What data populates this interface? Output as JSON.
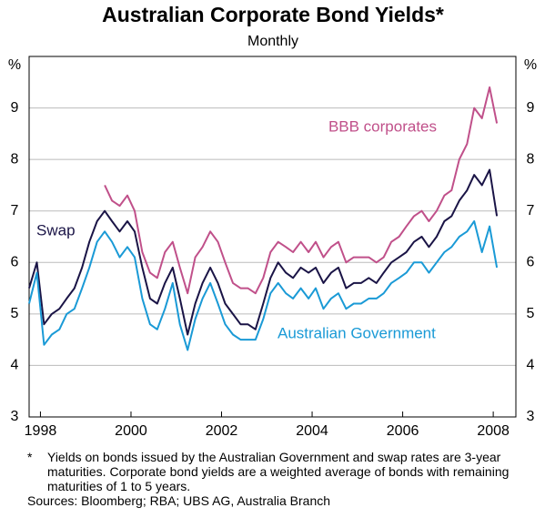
{
  "chart_data": {
    "type": "line",
    "title": "Australian Corporate Bond Yields*",
    "subtitle": "Monthly",
    "y_unit": "%",
    "x": [
      1997.75,
      1997.92,
      1998.08,
      1998.25,
      1998.42,
      1998.58,
      1998.75,
      1998.92,
      1999.08,
      1999.25,
      1999.42,
      1999.58,
      1999.75,
      1999.92,
      2000.08,
      2000.25,
      2000.42,
      2000.58,
      2000.75,
      2000.92,
      2001.08,
      2001.25,
      2001.42,
      2001.58,
      2001.75,
      2001.92,
      2002.08,
      2002.25,
      2002.42,
      2002.58,
      2002.75,
      2002.92,
      2003.08,
      2003.25,
      2003.42,
      2003.58,
      2003.75,
      2003.92,
      2004.08,
      2004.25,
      2004.42,
      2004.58,
      2004.75,
      2004.92,
      2005.08,
      2005.25,
      2005.42,
      2005.58,
      2005.75,
      2005.92,
      2006.08,
      2006.25,
      2006.42,
      2006.58,
      2006.75,
      2006.92,
      2007.08,
      2007.25,
      2007.42,
      2007.58,
      2007.75,
      2007.92,
      2008.08
    ],
    "series": [
      {
        "name": "BBB corporates",
        "color": "#c0508a",
        "values": [
          null,
          null,
          null,
          null,
          null,
          null,
          null,
          null,
          null,
          null,
          7.5,
          7.2,
          7.1,
          7.3,
          7.0,
          6.2,
          5.8,
          5.7,
          6.2,
          6.4,
          5.9,
          5.4,
          6.1,
          6.3,
          6.6,
          6.4,
          6.0,
          5.6,
          5.5,
          5.5,
          5.4,
          5.7,
          6.2,
          6.4,
          6.3,
          6.2,
          6.4,
          6.2,
          6.4,
          6.1,
          6.3,
          6.4,
          6.0,
          6.1,
          6.1,
          6.1,
          6.0,
          6.1,
          6.4,
          6.5,
          6.7,
          6.9,
          7.0,
          6.8,
          7.0,
          7.3,
          7.4,
          8.0,
          8.3,
          9.0,
          8.8,
          9.4,
          8.7
        ]
      },
      {
        "name": "Swap",
        "color": "#1a1446",
        "values": [
          5.5,
          6.0,
          4.8,
          5.0,
          5.1,
          5.3,
          5.5,
          5.9,
          6.4,
          6.8,
          7.0,
          6.8,
          6.6,
          6.8,
          6.6,
          5.9,
          5.3,
          5.2,
          5.6,
          5.9,
          5.3,
          4.6,
          5.2,
          5.6,
          5.9,
          5.6,
          5.2,
          5.0,
          4.8,
          4.8,
          4.7,
          5.2,
          5.7,
          6.0,
          5.8,
          5.7,
          5.9,
          5.8,
          5.9,
          5.6,
          5.8,
          5.9,
          5.5,
          5.6,
          5.6,
          5.7,
          5.6,
          5.8,
          6.0,
          6.1,
          6.2,
          6.4,
          6.5,
          6.3,
          6.5,
          6.8,
          6.9,
          7.2,
          7.4,
          7.7,
          7.5,
          7.8,
          6.9
        ]
      },
      {
        "name": "Australian Government",
        "color": "#1a9ad6",
        "values": [
          5.2,
          5.8,
          4.4,
          4.6,
          4.7,
          5.0,
          5.1,
          5.5,
          5.9,
          6.4,
          6.6,
          6.4,
          6.1,
          6.3,
          6.1,
          5.3,
          4.8,
          4.7,
          5.1,
          5.6,
          4.8,
          4.3,
          4.9,
          5.3,
          5.6,
          5.2,
          4.8,
          4.6,
          4.5,
          4.5,
          4.5,
          4.9,
          5.4,
          5.6,
          5.4,
          5.3,
          5.5,
          5.3,
          5.5,
          5.1,
          5.3,
          5.4,
          5.1,
          5.2,
          5.2,
          5.3,
          5.3,
          5.4,
          5.6,
          5.7,
          5.8,
          6.0,
          6.0,
          5.8,
          6.0,
          6.2,
          6.3,
          6.5,
          6.6,
          6.8,
          6.2,
          6.7,
          5.9
        ]
      }
    ],
    "xlim": [
      1997.75,
      2008.5
    ],
    "xticks": [
      1998,
      2000,
      2002,
      2004,
      2006,
      2008
    ],
    "ylim": [
      3,
      10
    ],
    "yticks": [
      3,
      4,
      5,
      6,
      7,
      8,
      9
    ],
    "grid": true,
    "footnote": {
      "marker": "*",
      "text": "Yields on bonds issued by the Australian Government and swap rates are 3-year maturities. Corporate bond yields are a weighted average of bonds with remaining maturities of 1 to 5 years."
    },
    "source": "Sources: Bloomberg; RBA; UBS AG, Australia Branch"
  }
}
